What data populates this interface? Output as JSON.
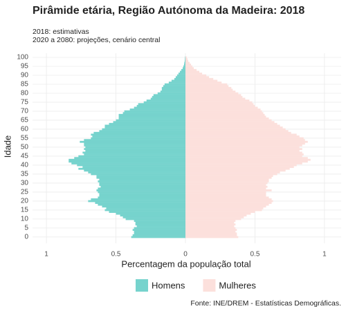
{
  "chart_data": {
    "type": "pyramid",
    "title": "Pirâmide etária, Região Autónoma da Madeira: 2018",
    "subtitle": [
      "2018: estimativas",
      "2020 a 2080: projeções, cenário central"
    ],
    "x_label": "Percentagem da população total",
    "y_label": "Idade",
    "caption": "Fonte: INE/DREM - Estatísticas Demográficas.",
    "categories": [
      0,
      1,
      2,
      3,
      4,
      5,
      6,
      7,
      8,
      9,
      10,
      11,
      12,
      13,
      14,
      15,
      16,
      17,
      18,
      19,
      20,
      21,
      22,
      23,
      24,
      25,
      26,
      27,
      28,
      29,
      30,
      31,
      32,
      33,
      34,
      35,
      36,
      37,
      38,
      39,
      40,
      41,
      42,
      43,
      44,
      45,
      46,
      47,
      48,
      49,
      50,
      51,
      52,
      53,
      54,
      55,
      56,
      57,
      58,
      59,
      60,
      61,
      62,
      63,
      64,
      65,
      66,
      67,
      68,
      69,
      70,
      71,
      72,
      73,
      74,
      75,
      76,
      77,
      78,
      79,
      80,
      81,
      82,
      83,
      84,
      85,
      86,
      87,
      88,
      89,
      90,
      91,
      92,
      93,
      94,
      95,
      96,
      97,
      98,
      99,
      100
    ],
    "series": [
      {
        "name": "Homens",
        "color": "#76d3cd",
        "values": [
          -0.39,
          -0.38,
          -0.37,
          -0.37,
          -0.38,
          -0.37,
          -0.35,
          -0.36,
          -0.36,
          -0.37,
          -0.43,
          -0.45,
          -0.47,
          -0.5,
          -0.55,
          -0.58,
          -0.57,
          -0.6,
          -0.63,
          -0.65,
          -0.7,
          -0.68,
          -0.63,
          -0.62,
          -0.62,
          -0.63,
          -0.64,
          -0.63,
          -0.61,
          -0.62,
          -0.62,
          -0.63,
          -0.62,
          -0.64,
          -0.64,
          -0.68,
          -0.7,
          -0.73,
          -0.77,
          -0.74,
          -0.78,
          -0.82,
          -0.84,
          -0.84,
          -0.8,
          -0.77,
          -0.73,
          -0.74,
          -0.72,
          -0.73,
          -0.72,
          -0.73,
          -0.73,
          -0.76,
          -0.73,
          -0.68,
          -0.67,
          -0.68,
          -0.66,
          -0.62,
          -0.6,
          -0.58,
          -0.58,
          -0.55,
          -0.52,
          -0.5,
          -0.48,
          -0.48,
          -0.48,
          -0.45,
          -0.44,
          -0.4,
          -0.37,
          -0.35,
          -0.34,
          -0.3,
          -0.28,
          -0.25,
          -0.24,
          -0.23,
          -0.2,
          -0.18,
          -0.17,
          -0.17,
          -0.16,
          -0.15,
          -0.12,
          -0.1,
          -0.08,
          -0.07,
          -0.06,
          -0.05,
          -0.04,
          -0.03,
          -0.02,
          -0.015,
          -0.01,
          -0.008,
          -0.005,
          -0.004,
          -0.003
        ]
      },
      {
        "name": "Mulheres",
        "color": "#fce0dc",
        "values": [
          0.38,
          0.37,
          0.37,
          0.36,
          0.37,
          0.36,
          0.35,
          0.36,
          0.35,
          0.36,
          0.4,
          0.42,
          0.44,
          0.47,
          0.5,
          0.55,
          0.56,
          0.58,
          0.6,
          0.62,
          0.63,
          0.62,
          0.6,
          0.58,
          0.58,
          0.58,
          0.62,
          0.58,
          0.59,
          0.58,
          0.59,
          0.6,
          0.6,
          0.62,
          0.63,
          0.66,
          0.68,
          0.72,
          0.75,
          0.78,
          0.8,
          0.84,
          0.88,
          0.9,
          0.88,
          0.84,
          0.85,
          0.84,
          0.82,
          0.84,
          0.82,
          0.84,
          0.86,
          0.88,
          0.86,
          0.85,
          0.82,
          0.8,
          0.76,
          0.74,
          0.72,
          0.7,
          0.68,
          0.66,
          0.64,
          0.62,
          0.6,
          0.58,
          0.57,
          0.56,
          0.55,
          0.54,
          0.52,
          0.5,
          0.49,
          0.48,
          0.46,
          0.43,
          0.41,
          0.4,
          0.38,
          0.36,
          0.34,
          0.33,
          0.31,
          0.3,
          0.26,
          0.23,
          0.2,
          0.17,
          0.15,
          0.12,
          0.1,
          0.08,
          0.06,
          0.05,
          0.04,
          0.03,
          0.02,
          0.015,
          0.01
        ]
      }
    ],
    "xlim": [
      -1.1,
      1.12
    ],
    "xticks": [
      {
        "value": -1,
        "label": "1"
      },
      {
        "value": -0.5,
        "label": "0.5"
      },
      0,
      0.5,
      1
    ],
    "ylim": [
      -3.5,
      102.3
    ],
    "yticks": [
      0,
      5,
      10,
      15,
      20,
      25,
      30,
      35,
      40,
      45,
      50,
      55,
      60,
      65,
      70,
      75,
      80,
      85,
      90,
      95,
      100
    ],
    "grid": true,
    "legend": "bottom"
  }
}
